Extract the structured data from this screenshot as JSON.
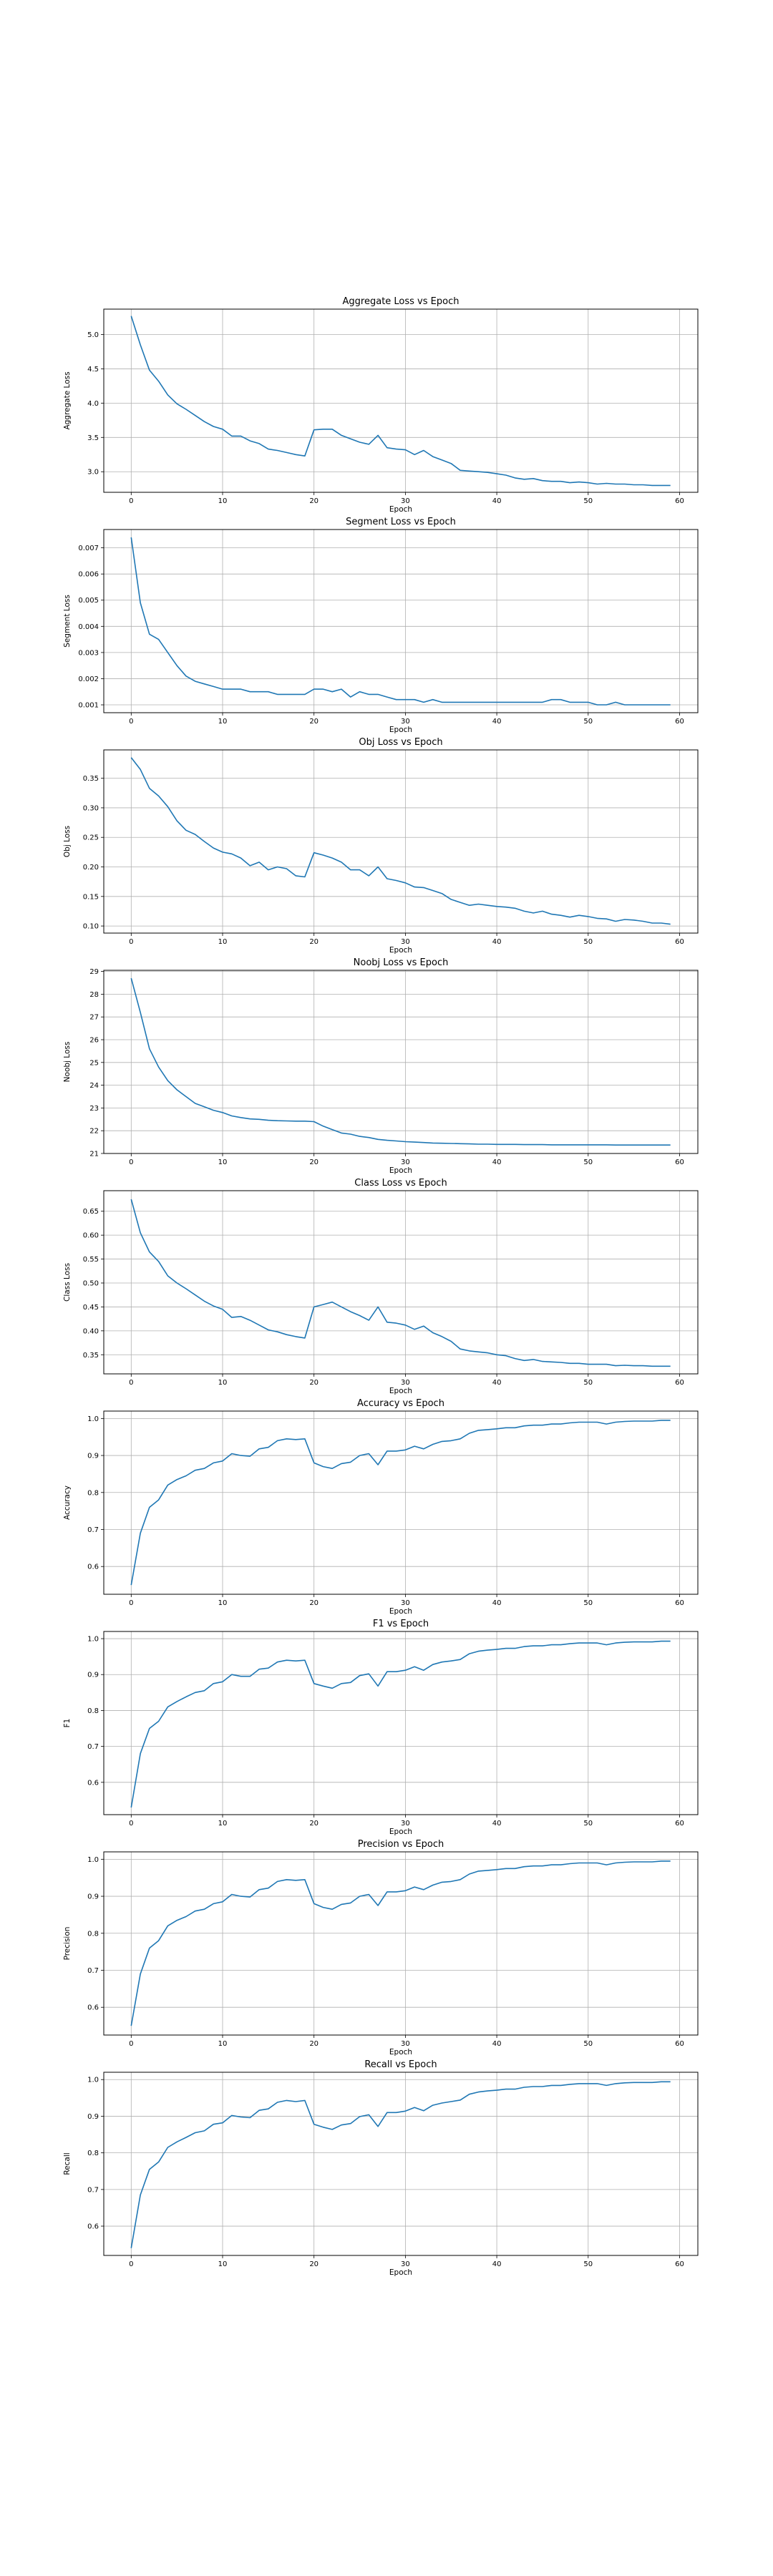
{
  "chart_data": [
    {
      "type": "line",
      "title": "Aggregate Loss vs Epoch",
      "xlabel": "Epoch",
      "ylabel": "Aggregate Loss",
      "xlim": [
        -3,
        62
      ],
      "ylim": [
        2.7,
        5.37
      ],
      "xticks": [
        0,
        10,
        20,
        30,
        40,
        50,
        60
      ],
      "yticks": [
        3.0,
        3.5,
        4.0,
        4.5,
        5.0
      ],
      "yticklabels": [
        "3.0",
        "3.5",
        "4.0",
        "4.5",
        "5.0"
      ],
      "grid": true,
      "color": "#1f77b4",
      "values": [
        5.27,
        4.85,
        4.48,
        4.32,
        4.12,
        3.99,
        3.91,
        3.82,
        3.73,
        3.66,
        3.62,
        3.52,
        3.52,
        3.45,
        3.41,
        3.33,
        3.31,
        3.28,
        3.25,
        3.23,
        3.61,
        3.62,
        3.62,
        3.53,
        3.48,
        3.43,
        3.4,
        3.53,
        3.35,
        3.33,
        3.32,
        3.25,
        3.31,
        3.22,
        3.17,
        3.12,
        3.02,
        3.01,
        3.0,
        2.99,
        2.97,
        2.95,
        2.91,
        2.89,
        2.9,
        2.87,
        2.86,
        2.86,
        2.84,
        2.85,
        2.84,
        2.82,
        2.83,
        2.82,
        2.82,
        2.81,
        2.81,
        2.8,
        2.8,
        2.8
      ]
    },
    {
      "type": "line",
      "title": "Segment Loss vs Epoch",
      "xlabel": "Epoch",
      "ylabel": "Segment Loss",
      "xlim": [
        -3,
        62
      ],
      "ylim": [
        0.0007,
        0.0077
      ],
      "xticks": [
        0,
        10,
        20,
        30,
        40,
        50,
        60
      ],
      "yticks": [
        0.001,
        0.002,
        0.003,
        0.004,
        0.005,
        0.006,
        0.007
      ],
      "yticklabels": [
        "0.001",
        "0.002",
        "0.003",
        "0.004",
        "0.005",
        "0.006",
        "0.007"
      ],
      "grid": true,
      "color": "#1f77b4",
      "values": [
        0.0074,
        0.0049,
        0.0037,
        0.0035,
        0.003,
        0.0025,
        0.0021,
        0.0019,
        0.0018,
        0.0017,
        0.0016,
        0.0016,
        0.0016,
        0.0015,
        0.0015,
        0.0015,
        0.0014,
        0.0014,
        0.0014,
        0.0014,
        0.0016,
        0.0016,
        0.0015,
        0.0016,
        0.0013,
        0.0015,
        0.0014,
        0.0014,
        0.0013,
        0.0012,
        0.0012,
        0.0012,
        0.0011,
        0.0012,
        0.0011,
        0.0011,
        0.0011,
        0.0011,
        0.0011,
        0.0011,
        0.0011,
        0.0011,
        0.0011,
        0.0011,
        0.0011,
        0.0011,
        0.0012,
        0.0012,
        0.0011,
        0.0011,
        0.0011,
        0.001,
        0.001,
        0.0011,
        0.001,
        0.001,
        0.001,
        0.001,
        0.001,
        0.001
      ]
    },
    {
      "type": "line",
      "title": "Obj Loss vs Epoch",
      "xlabel": "Epoch",
      "ylabel": "Obj Loss",
      "xlim": [
        -3,
        62
      ],
      "ylim": [
        0.088,
        0.398
      ],
      "xticks": [
        0,
        10,
        20,
        30,
        40,
        50,
        60
      ],
      "yticks": [
        0.1,
        0.15,
        0.2,
        0.25,
        0.3,
        0.35
      ],
      "yticklabels": [
        "0.10",
        "0.15",
        "0.20",
        "0.25",
        "0.30",
        "0.35"
      ],
      "grid": true,
      "color": "#1f77b4",
      "values": [
        0.385,
        0.365,
        0.333,
        0.32,
        0.302,
        0.278,
        0.262,
        0.255,
        0.243,
        0.232,
        0.225,
        0.222,
        0.215,
        0.202,
        0.208,
        0.195,
        0.2,
        0.197,
        0.185,
        0.183,
        0.224,
        0.22,
        0.215,
        0.208,
        0.195,
        0.195,
        0.185,
        0.2,
        0.18,
        0.177,
        0.173,
        0.166,
        0.165,
        0.16,
        0.155,
        0.145,
        0.14,
        0.135,
        0.137,
        0.135,
        0.133,
        0.132,
        0.13,
        0.125,
        0.122,
        0.125,
        0.12,
        0.118,
        0.115,
        0.118,
        0.116,
        0.113,
        0.112,
        0.108,
        0.111,
        0.11,
        0.108,
        0.105,
        0.105,
        0.103
      ]
    },
    {
      "type": "line",
      "title": "Noobj Loss vs Epoch",
      "xlabel": "Epoch",
      "ylabel": "Noobj Loss",
      "xlim": [
        -3,
        62
      ],
      "ylim": [
        21.0,
        29.05
      ],
      "xticks": [
        0,
        10,
        20,
        30,
        40,
        50,
        60
      ],
      "yticks": [
        21,
        22,
        23,
        24,
        25,
        26,
        27,
        28,
        29
      ],
      "yticklabels": [
        "21",
        "22",
        "23",
        "24",
        "25",
        "26",
        "27",
        "28",
        "29"
      ],
      "grid": true,
      "color": "#1f77b4",
      "values": [
        28.7,
        27.2,
        25.6,
        24.8,
        24.2,
        23.8,
        23.5,
        23.2,
        23.05,
        22.9,
        22.8,
        22.65,
        22.58,
        22.52,
        22.5,
        22.46,
        22.44,
        22.43,
        22.42,
        22.42,
        22.4,
        22.2,
        22.05,
        21.9,
        21.85,
        21.75,
        21.7,
        21.62,
        21.58,
        21.55,
        21.52,
        21.5,
        21.48,
        21.46,
        21.45,
        21.44,
        21.43,
        21.42,
        21.41,
        21.41,
        21.4,
        21.4,
        21.4,
        21.39,
        21.39,
        21.39,
        21.38,
        21.38,
        21.38,
        21.38,
        21.38,
        21.38,
        21.38,
        21.37,
        21.37,
        21.37,
        21.37,
        21.37,
        21.37,
        21.37
      ]
    },
    {
      "type": "line",
      "title": "Class Loss vs Epoch",
      "xlabel": "Epoch",
      "ylabel": "Class Loss",
      "xlim": [
        -3,
        62
      ],
      "ylim": [
        0.31,
        0.693
      ],
      "xticks": [
        0,
        10,
        20,
        30,
        40,
        50,
        60
      ],
      "yticks": [
        0.35,
        0.4,
        0.45,
        0.5,
        0.55,
        0.6,
        0.65
      ],
      "yticklabels": [
        "0.35",
        "0.40",
        "0.45",
        "0.50",
        "0.55",
        "0.60",
        "0.65"
      ],
      "grid": true,
      "color": "#1f77b4",
      "values": [
        0.675,
        0.605,
        0.565,
        0.545,
        0.515,
        0.5,
        0.488,
        0.475,
        0.462,
        0.452,
        0.445,
        0.428,
        0.43,
        0.422,
        0.412,
        0.402,
        0.398,
        0.392,
        0.388,
        0.385,
        0.45,
        0.455,
        0.46,
        0.45,
        0.44,
        0.432,
        0.422,
        0.45,
        0.418,
        0.416,
        0.412,
        0.403,
        0.41,
        0.396,
        0.388,
        0.378,
        0.362,
        0.358,
        0.356,
        0.354,
        0.35,
        0.348,
        0.342,
        0.338,
        0.34,
        0.336,
        0.335,
        0.334,
        0.332,
        0.332,
        0.33,
        0.33,
        0.33,
        0.327,
        0.328,
        0.327,
        0.327,
        0.326,
        0.326,
        0.326
      ]
    },
    {
      "type": "line",
      "title": "Accuracy vs Epoch",
      "xlabel": "Epoch",
      "ylabel": "Accuracy",
      "xlim": [
        -3,
        62
      ],
      "ylim": [
        0.525,
        1.02
      ],
      "xticks": [
        0,
        10,
        20,
        30,
        40,
        50,
        60
      ],
      "yticks": [
        0.6,
        0.7,
        0.8,
        0.9,
        1.0
      ],
      "yticklabels": [
        "0.6",
        "0.7",
        "0.8",
        "0.9",
        "1.0"
      ],
      "grid": true,
      "color": "#1f77b4",
      "values": [
        0.55,
        0.69,
        0.76,
        0.78,
        0.82,
        0.835,
        0.845,
        0.86,
        0.865,
        0.88,
        0.885,
        0.905,
        0.9,
        0.898,
        0.918,
        0.922,
        0.94,
        0.945,
        0.943,
        0.945,
        0.88,
        0.87,
        0.865,
        0.878,
        0.882,
        0.9,
        0.905,
        0.875,
        0.912,
        0.912,
        0.915,
        0.925,
        0.918,
        0.93,
        0.938,
        0.94,
        0.945,
        0.96,
        0.968,
        0.97,
        0.972,
        0.975,
        0.975,
        0.98,
        0.982,
        0.982,
        0.985,
        0.985,
        0.988,
        0.99,
        0.99,
        0.99,
        0.985,
        0.99,
        0.992,
        0.993,
        0.993,
        0.993,
        0.995,
        0.995
      ]
    },
    {
      "type": "line",
      "title": "F1 vs Epoch",
      "xlabel": "Epoch",
      "ylabel": "F1",
      "xlim": [
        -3,
        62
      ],
      "ylim": [
        0.51,
        1.02
      ],
      "xticks": [
        0,
        10,
        20,
        30,
        40,
        50,
        60
      ],
      "yticks": [
        0.6,
        0.7,
        0.8,
        0.9,
        1.0
      ],
      "yticklabels": [
        "0.6",
        "0.7",
        "0.8",
        "0.9",
        "1.0"
      ],
      "grid": true,
      "color": "#1f77b4",
      "values": [
        0.53,
        0.68,
        0.75,
        0.77,
        0.81,
        0.825,
        0.838,
        0.85,
        0.855,
        0.875,
        0.88,
        0.9,
        0.895,
        0.895,
        0.915,
        0.918,
        0.935,
        0.94,
        0.938,
        0.94,
        0.875,
        0.868,
        0.862,
        0.875,
        0.878,
        0.897,
        0.902,
        0.868,
        0.908,
        0.908,
        0.912,
        0.922,
        0.912,
        0.928,
        0.935,
        0.938,
        0.942,
        0.958,
        0.965,
        0.968,
        0.97,
        0.973,
        0.973,
        0.978,
        0.98,
        0.98,
        0.983,
        0.983,
        0.986,
        0.988,
        0.988,
        0.988,
        0.983,
        0.988,
        0.99,
        0.991,
        0.991,
        0.991,
        0.993,
        0.993
      ]
    },
    {
      "type": "line",
      "title": "Precision vs Epoch",
      "xlabel": "Epoch",
      "ylabel": "Precision",
      "xlim": [
        -3,
        62
      ],
      "ylim": [
        0.525,
        1.02
      ],
      "xticks": [
        0,
        10,
        20,
        30,
        40,
        50,
        60
      ],
      "yticks": [
        0.6,
        0.7,
        0.8,
        0.9,
        1.0
      ],
      "yticklabels": [
        "0.6",
        "0.7",
        "0.8",
        "0.9",
        "1.0"
      ],
      "grid": true,
      "color": "#1f77b4",
      "values": [
        0.55,
        0.69,
        0.76,
        0.78,
        0.82,
        0.835,
        0.845,
        0.86,
        0.865,
        0.88,
        0.885,
        0.905,
        0.9,
        0.898,
        0.918,
        0.922,
        0.94,
        0.945,
        0.943,
        0.945,
        0.88,
        0.87,
        0.865,
        0.878,
        0.882,
        0.9,
        0.905,
        0.875,
        0.912,
        0.912,
        0.915,
        0.925,
        0.918,
        0.93,
        0.938,
        0.94,
        0.945,
        0.96,
        0.968,
        0.97,
        0.972,
        0.975,
        0.975,
        0.98,
        0.982,
        0.982,
        0.985,
        0.985,
        0.988,
        0.99,
        0.99,
        0.99,
        0.985,
        0.99,
        0.992,
        0.993,
        0.993,
        0.993,
        0.995,
        0.995
      ]
    },
    {
      "type": "line",
      "title": "Recall vs Epoch",
      "xlabel": "Epoch",
      "ylabel": "Recall",
      "xlim": [
        -3,
        62
      ],
      "ylim": [
        0.52,
        1.02
      ],
      "xticks": [
        0,
        10,
        20,
        30,
        40,
        50,
        60
      ],
      "yticks": [
        0.6,
        0.7,
        0.8,
        0.9,
        1.0
      ],
      "yticklabels": [
        "0.6",
        "0.7",
        "0.8",
        "0.9",
        "1.0"
      ],
      "grid": true,
      "color": "#1f77b4",
      "values": [
        0.54,
        0.685,
        0.755,
        0.775,
        0.815,
        0.83,
        0.842,
        0.855,
        0.86,
        0.878,
        0.882,
        0.902,
        0.898,
        0.896,
        0.916,
        0.92,
        0.938,
        0.943,
        0.94,
        0.943,
        0.878,
        0.87,
        0.864,
        0.876,
        0.88,
        0.899,
        0.904,
        0.872,
        0.91,
        0.91,
        0.914,
        0.924,
        0.915,
        0.93,
        0.936,
        0.94,
        0.944,
        0.96,
        0.966,
        0.969,
        0.971,
        0.974,
        0.974,
        0.979,
        0.981,
        0.981,
        0.984,
        0.984,
        0.987,
        0.989,
        0.989,
        0.989,
        0.984,
        0.989,
        0.991,
        0.992,
        0.992,
        0.992,
        0.994,
        0.994
      ]
    }
  ]
}
